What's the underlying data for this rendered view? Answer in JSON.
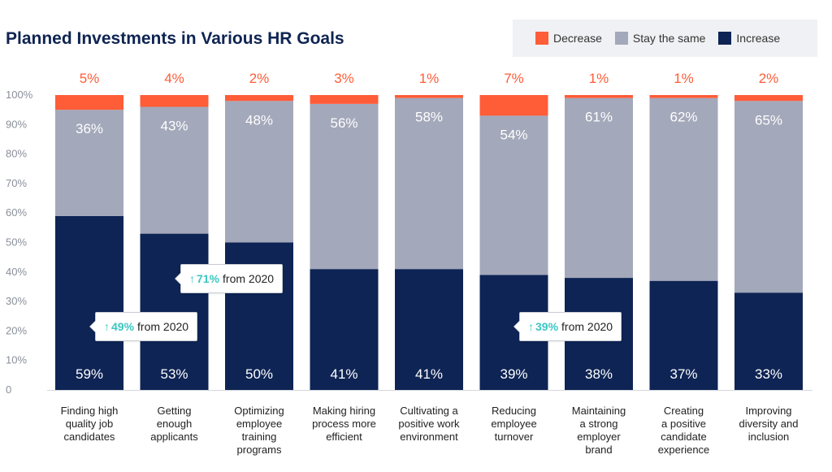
{
  "title": "Planned Investments in Various HR Goals",
  "legend": [
    {
      "label": "Decrease",
      "color": "#ff5c38"
    },
    {
      "label": "Stay the same",
      "color": "#a3a8ba"
    },
    {
      "label": "Increase",
      "color": "#0e2454"
    }
  ],
  "chart_data": {
    "type": "bar",
    "stacked": true,
    "title": "Planned Investments in Various HR Goals",
    "categories": [
      "Finding high quality job candidates",
      "Getting enough applicants",
      "Optimizing employee training programs",
      "Making hiring process more efficient",
      "Cultivating a positive work environment",
      "Reducing employee turnover",
      "Maintaining a strong employer brand",
      "Creating a positive candidate experience",
      "Improving diversity and inclusion"
    ],
    "category_lines": [
      [
        "Finding high",
        "quality job",
        "candidates"
      ],
      [
        "Getting",
        "enough",
        "applicants"
      ],
      [
        "Optimizing",
        "employee",
        "training",
        "programs"
      ],
      [
        "Making hiring",
        "process more",
        "efficient"
      ],
      [
        "Cultivating a",
        "positive work",
        "environment"
      ],
      [
        "Reducing",
        "employee",
        "turnover"
      ],
      [
        "Maintaining",
        "a strong",
        "employer",
        "brand"
      ],
      [
        "Creating",
        "a positive",
        "candidate",
        "experience"
      ],
      [
        "Improving",
        "diversity and",
        "inclusion"
      ]
    ],
    "series": [
      {
        "name": "Increase",
        "values": [
          59,
          53,
          50,
          41,
          41,
          39,
          38,
          37,
          33
        ],
        "labels": [
          "59%",
          "53%",
          "50%",
          "41%",
          "41%",
          "39%",
          "38%",
          "37%",
          "33%"
        ]
      },
      {
        "name": "Stay the same",
        "values": [
          36,
          43,
          48,
          56,
          58,
          54,
          61,
          62,
          65
        ],
        "labels": [
          "36%",
          "43%",
          "48%",
          "56%",
          "58%",
          "54%",
          "61%",
          "62%",
          "65%"
        ]
      },
      {
        "name": "Decrease",
        "values": [
          5,
          4,
          2,
          3,
          1,
          7,
          1,
          1,
          2
        ],
        "labels": [
          "5%",
          "4%",
          "2%",
          "3%",
          "1%",
          "7%",
          "1%",
          "1%",
          "2%"
        ]
      }
    ],
    "ylim": [
      0,
      100
    ],
    "yticks": [
      "0",
      "10%",
      "20%",
      "30%",
      "40%",
      "50%",
      "60%",
      "70%",
      "80%",
      "90%",
      "100%"
    ],
    "grid": false,
    "legend_position": "top-right"
  },
  "callouts": [
    {
      "arrow": "↑",
      "pct": "49%",
      "text": "from 2020"
    },
    {
      "arrow": "↑",
      "pct": "71%",
      "text": "from 2020"
    },
    {
      "arrow": "↑",
      "pct": "39%",
      "text": "from 2020"
    }
  ]
}
